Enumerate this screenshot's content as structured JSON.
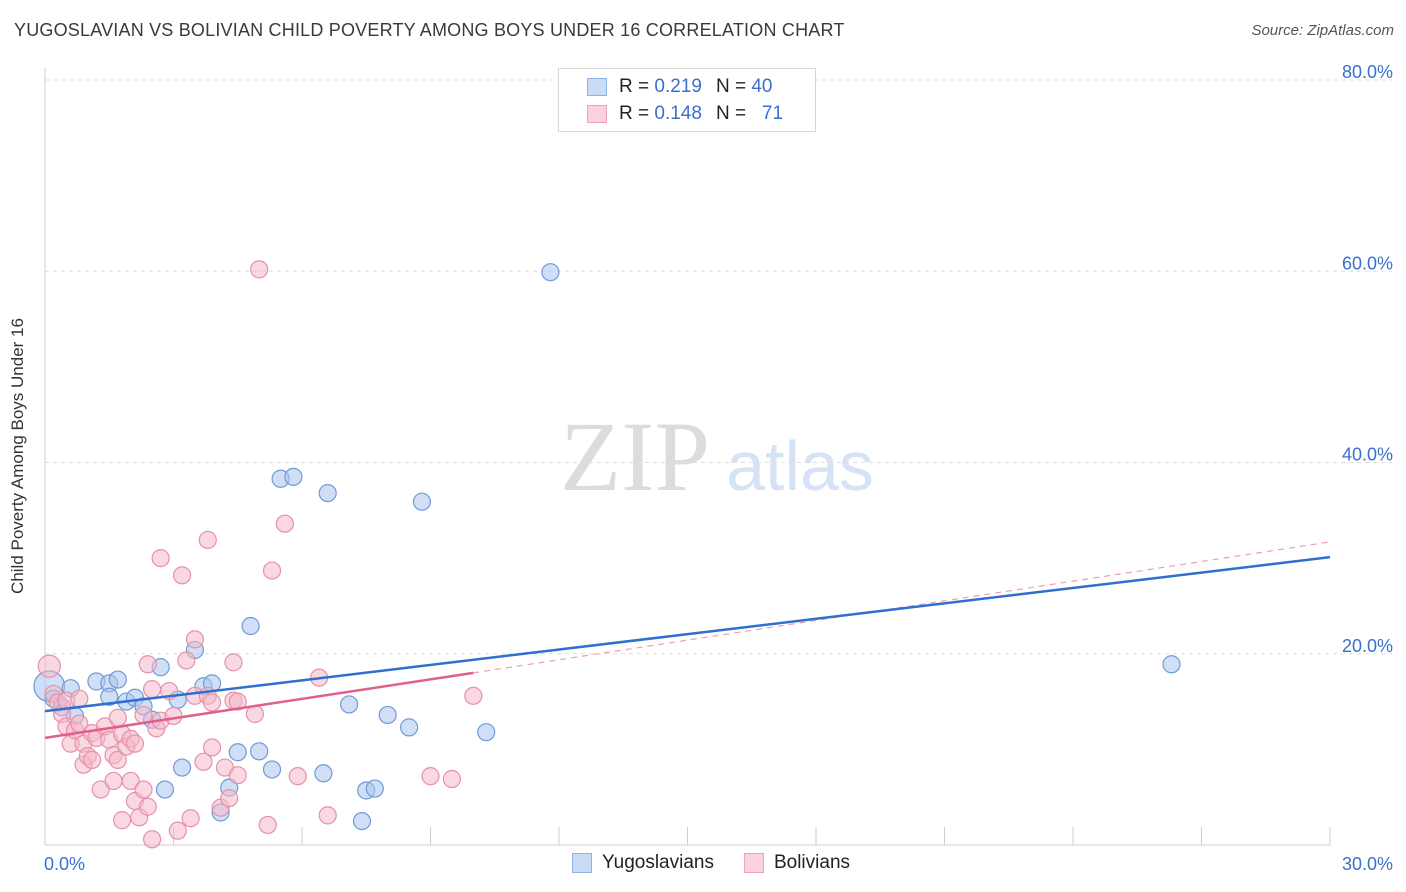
{
  "header": {
    "title": "YUGOSLAVIAN VS BOLIVIAN CHILD POVERTY AMONG BOYS UNDER 16 CORRELATION CHART",
    "source": "Source: ZipAtlas.com"
  },
  "watermark": {
    "zip": "ZIP",
    "atlas": "atlas"
  },
  "legend_top": [
    {
      "r_label": "R =",
      "r_value": "0.219",
      "n_label": "N =",
      "n_value": "40",
      "color": "#a9c4ee"
    },
    {
      "r_label": "R =",
      "r_value": "0.148",
      "n_label": "N =",
      "n_value": "71",
      "color": "#f4b8c9"
    }
  ],
  "legend_bottom": [
    {
      "label": "Yugoslavians",
      "color": "#a9c4ee"
    },
    {
      "label": "Bolivians",
      "color": "#f4b8c9"
    }
  ],
  "chart_data": {
    "type": "scatter",
    "ylabel": "Child Poverty Among Boys Under 16",
    "x_ticks": [
      {
        "value": 0,
        "label": "0.0%"
      },
      {
        "value": 30,
        "label": "30.0%"
      }
    ],
    "y_ticks": [
      {
        "value": 20,
        "label": "20.0%"
      },
      {
        "value": 40,
        "label": "40.0%"
      },
      {
        "value": 60,
        "label": "60.0%"
      },
      {
        "value": 80,
        "label": "80.0%"
      }
    ],
    "xlim": [
      0,
      30
    ],
    "ylim": [
      0,
      80
    ],
    "grid": "horizontal dashed",
    "series": [
      {
        "name": "Yugoslavians",
        "color": "#a9c4ee",
        "stroke": "#6f9ad8",
        "trend": {
          "x": [
            0,
            30
          ],
          "y": [
            14.0,
            30.1
          ],
          "color": "#2f6fd0"
        },
        "points": [
          [
            0.1,
            16.6,
            1.8
          ],
          [
            0.2,
            15.3,
            1
          ],
          [
            0.4,
            14.4,
            1
          ],
          [
            0.6,
            16.4,
            1
          ],
          [
            0.7,
            13.5,
            1
          ],
          [
            1.2,
            17.1,
            1
          ],
          [
            1.5,
            16.9,
            1
          ],
          [
            1.5,
            15.5,
            1
          ],
          [
            1.7,
            17.3,
            1
          ],
          [
            1.9,
            15.0,
            1
          ],
          [
            2.1,
            15.4,
            1
          ],
          [
            2.3,
            14.5,
            1
          ],
          [
            2.5,
            13.1,
            1
          ],
          [
            2.7,
            18.6,
            1
          ],
          [
            2.8,
            5.8,
            1
          ],
          [
            3.1,
            15.2,
            1
          ],
          [
            3.2,
            8.1,
            1
          ],
          [
            3.5,
            20.4,
            1
          ],
          [
            3.7,
            16.6,
            1
          ],
          [
            3.9,
            16.9,
            1
          ],
          [
            4.1,
            3.4,
            1
          ],
          [
            4.3,
            6.0,
            1
          ],
          [
            4.5,
            9.7,
            1
          ],
          [
            4.8,
            22.9,
            1
          ],
          [
            5.0,
            9.8,
            1
          ],
          [
            5.3,
            7.9,
            1
          ],
          [
            5.5,
            38.3,
            1
          ],
          [
            5.8,
            38.5,
            1
          ],
          [
            6.5,
            7.5,
            1
          ],
          [
            6.6,
            36.8,
            1
          ],
          [
            7.1,
            14.7,
            1
          ],
          [
            7.4,
            2.5,
            1
          ],
          [
            7.5,
            5.7,
            1
          ],
          [
            7.7,
            5.9,
            1
          ],
          [
            8.0,
            13.6,
            1
          ],
          [
            8.5,
            12.3,
            1
          ],
          [
            8.8,
            35.9,
            1
          ],
          [
            10.3,
            11.8,
            1
          ],
          [
            11.8,
            59.9,
            1
          ],
          [
            26.3,
            18.9,
            1
          ]
        ]
      },
      {
        "name": "Bolivians",
        "color": "#f4b8c9",
        "stroke": "#e690aa",
        "trend": {
          "x": [
            0,
            10.0
          ],
          "y": [
            11.2,
            18.0
          ],
          "color": "#e0608a"
        },
        "trend_ext": {
          "x": [
            10.0,
            30
          ],
          "y": [
            18.0,
            31.7
          ],
          "color": "#e8a0b6"
        },
        "points": [
          [
            0.1,
            18.7,
            1.3
          ],
          [
            0.2,
            15.8,
            1
          ],
          [
            0.3,
            14.9,
            1
          ],
          [
            0.4,
            13.7,
            1
          ],
          [
            0.5,
            15.1,
            1
          ],
          [
            0.5,
            12.4,
            1
          ],
          [
            0.6,
            10.6,
            1
          ],
          [
            0.7,
            12.0,
            1
          ],
          [
            0.8,
            15.3,
            1
          ],
          [
            0.8,
            12.7,
            1
          ],
          [
            0.9,
            10.6,
            1
          ],
          [
            0.9,
            8.4,
            1
          ],
          [
            1.0,
            9.3,
            1
          ],
          [
            1.1,
            8.9,
            1
          ],
          [
            1.1,
            11.7,
            1
          ],
          [
            1.2,
            11.2,
            1
          ],
          [
            1.3,
            5.8,
            1
          ],
          [
            1.4,
            12.4,
            1
          ],
          [
            1.5,
            11.0,
            1
          ],
          [
            1.6,
            9.4,
            1
          ],
          [
            1.6,
            6.7,
            1
          ],
          [
            1.7,
            13.3,
            1
          ],
          [
            1.7,
            8.9,
            1
          ],
          [
            1.8,
            2.6,
            1
          ],
          [
            1.8,
            11.6,
            1
          ],
          [
            1.9,
            10.3,
            1
          ],
          [
            2.0,
            11.1,
            1
          ],
          [
            2.0,
            6.7,
            1
          ],
          [
            2.1,
            10.6,
            1
          ],
          [
            2.1,
            4.6,
            1
          ],
          [
            2.2,
            2.9,
            1
          ],
          [
            2.3,
            5.8,
            1
          ],
          [
            2.3,
            13.6,
            1
          ],
          [
            2.4,
            4.0,
            1
          ],
          [
            2.4,
            18.9,
            1
          ],
          [
            2.5,
            0.6,
            1
          ],
          [
            2.5,
            16.3,
            1
          ],
          [
            2.6,
            12.2,
            1
          ],
          [
            2.7,
            13.0,
            1
          ],
          [
            2.7,
            30.0,
            1
          ],
          [
            2.9,
            16.1,
            1
          ],
          [
            3.0,
            13.5,
            1
          ],
          [
            3.1,
            1.5,
            1
          ],
          [
            3.2,
            28.2,
            1
          ],
          [
            3.3,
            19.3,
            1
          ],
          [
            3.4,
            2.8,
            1
          ],
          [
            3.5,
            15.6,
            1
          ],
          [
            3.5,
            21.5,
            1
          ],
          [
            3.7,
            8.7,
            1
          ],
          [
            3.8,
            15.6,
            1
          ],
          [
            3.8,
            31.9,
            1
          ],
          [
            3.9,
            14.9,
            1
          ],
          [
            3.9,
            10.2,
            1
          ],
          [
            4.1,
            3.9,
            1
          ],
          [
            4.2,
            8.1,
            1
          ],
          [
            4.3,
            4.9,
            1
          ],
          [
            4.4,
            15.1,
            1
          ],
          [
            4.4,
            19.1,
            1
          ],
          [
            4.5,
            7.3,
            1
          ],
          [
            4.5,
            15.0,
            1
          ],
          [
            4.9,
            13.7,
            1
          ],
          [
            5.0,
            60.2,
            1
          ],
          [
            5.2,
            2.1,
            1
          ],
          [
            5.3,
            28.7,
            1
          ],
          [
            5.6,
            33.6,
            1
          ],
          [
            5.9,
            7.2,
            1
          ],
          [
            6.4,
            17.5,
            1
          ],
          [
            6.6,
            3.1,
            1
          ],
          [
            9.0,
            7.2,
            1
          ],
          [
            9.5,
            6.9,
            1
          ],
          [
            10.0,
            15.6,
            1
          ]
        ]
      }
    ]
  }
}
